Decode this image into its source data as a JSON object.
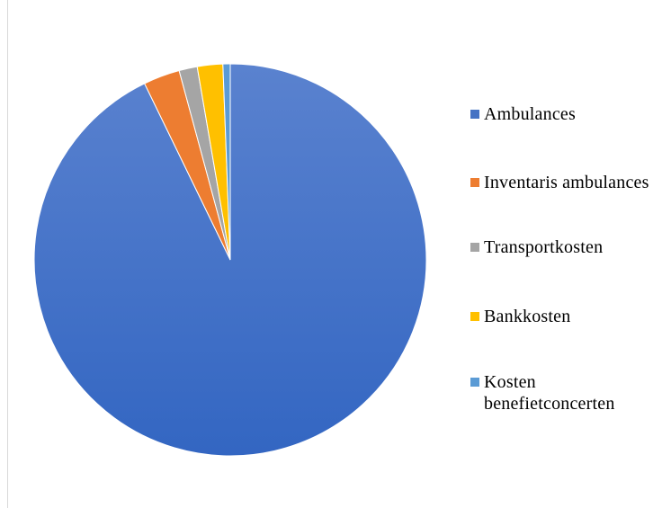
{
  "chart_data": {
    "type": "pie",
    "categories": [
      "Ambulances",
      "Inventaris ambulances",
      "Transportkosten",
      "Bankkosten",
      "Kosten benefietconcerten"
    ],
    "values": [
      92.8,
      3.0,
      1.5,
      2.1,
      0.6
    ],
    "colors": [
      "#4472C4",
      "#ED7D31",
      "#A5A5A5",
      "#FFC000",
      "#5B9BD5"
    ],
    "legend_position": "right"
  }
}
